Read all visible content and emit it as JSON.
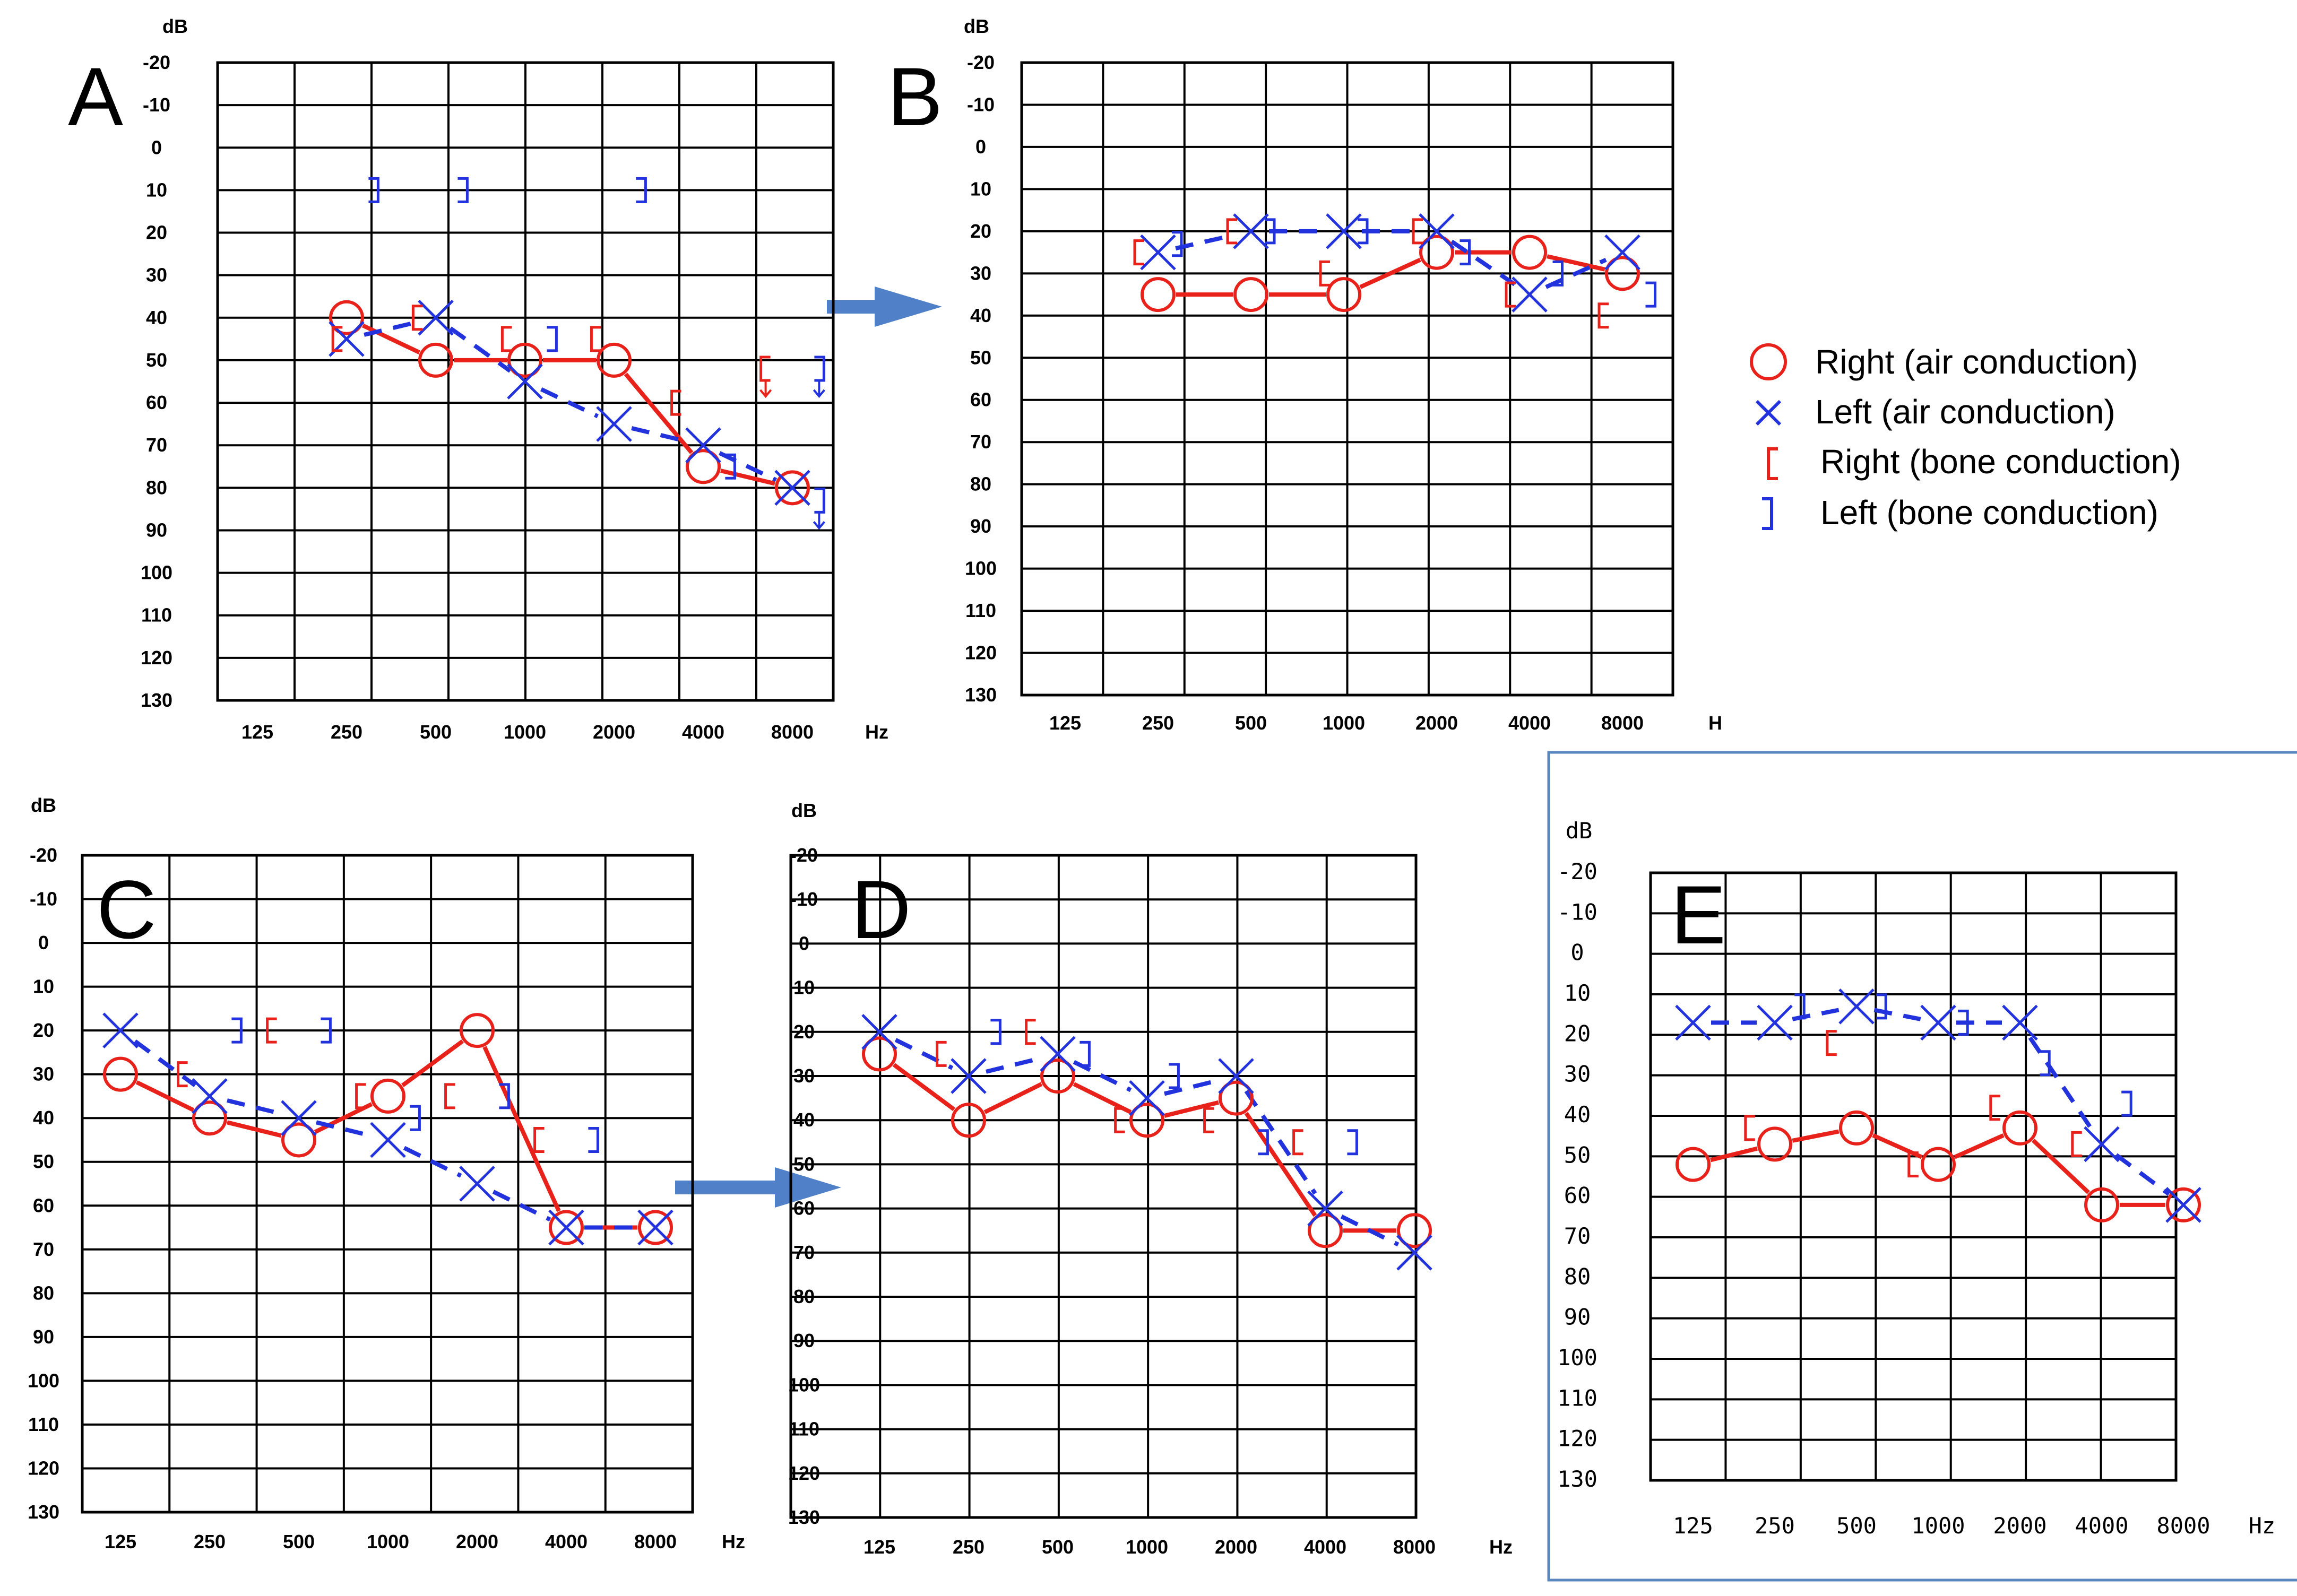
{
  "legend": {
    "right_air": "Right (air conduction)",
    "left_air": "Left (air conduction)",
    "right_bone": "Right (bone conduction)",
    "left_bone": "Left (bone conduction)",
    "right_color": "#e8221b",
    "left_color": "#2233dd"
  },
  "chart_data": [
    {
      "type": "line",
      "panel": "A",
      "ylabel": "dB",
      "xlabel": "Hz",
      "ylim": [
        -20,
        130
      ],
      "y_ticks": [
        "-20",
        "-10",
        "0",
        "10",
        "20",
        "30",
        "40",
        "50",
        "60",
        "70",
        "80",
        "90",
        "100",
        "110",
        "120",
        "130"
      ],
      "categories": [
        "125",
        "250",
        "500",
        "1000",
        "2000",
        "4000",
        "8000"
      ],
      "right_air": [
        [
          1,
          40
        ],
        [
          2,
          50
        ],
        [
          3,
          50
        ],
        [
          4,
          50
        ],
        [
          5,
          75
        ],
        [
          6,
          80
        ]
      ],
      "left_air": [
        [
          1,
          45
        ],
        [
          2,
          40
        ],
        [
          3,
          55
        ],
        [
          4,
          65
        ],
        [
          5,
          70
        ],
        [
          6,
          80
        ]
      ],
      "right_bone": [
        [
          0.9,
          45
        ],
        [
          1.8,
          40
        ],
        [
          2.8,
          45
        ],
        [
          3.8,
          45
        ],
        [
          4.7,
          60
        ],
        [
          5.7,
          52,
          "scale-out"
        ]
      ],
      "left_bone": [
        [
          1.3,
          10
        ],
        [
          2.3,
          10
        ],
        [
          3.3,
          45
        ],
        [
          4.3,
          10
        ],
        [
          5.3,
          75
        ],
        [
          6.3,
          52,
          "scale-out"
        ],
        [
          6.3,
          83,
          "scale-out"
        ]
      ]
    },
    {
      "type": "line",
      "panel": "B",
      "ylabel": "dB",
      "xlabel": "H",
      "ylim": [
        -20,
        130
      ],
      "y_ticks": [
        "-20",
        "-10",
        "0",
        "10",
        "20",
        "30",
        "40",
        "50",
        "60",
        "70",
        "80",
        "90",
        "100",
        "110",
        "120",
        "130"
      ],
      "categories": [
        "125",
        "250",
        "500",
        "1000",
        "2000",
        "4000",
        "8000"
      ],
      "right_air": [
        [
          1,
          35
        ],
        [
          2,
          35
        ],
        [
          3,
          35
        ],
        [
          4,
          25
        ],
        [
          5,
          25
        ],
        [
          6,
          30
        ]
      ],
      "left_air": [
        [
          1,
          25
        ],
        [
          2,
          20
        ],
        [
          3,
          20
        ],
        [
          4,
          20
        ],
        [
          5,
          35
        ],
        [
          6,
          25
        ]
      ],
      "right_bone": [
        [
          0.8,
          25
        ],
        [
          1.8,
          20
        ],
        [
          2.8,
          30
        ],
        [
          3.8,
          20
        ],
        [
          4.8,
          35
        ],
        [
          5.8,
          40
        ]
      ],
      "left_bone": [
        [
          1.2,
          23
        ],
        [
          2.2,
          20
        ],
        [
          3.2,
          20
        ],
        [
          4.3,
          25
        ],
        [
          5.3,
          30
        ],
        [
          6.3,
          35
        ]
      ]
    },
    {
      "type": "line",
      "panel": "C",
      "ylabel": "dB",
      "xlabel": "Hz",
      "ylim": [
        -20,
        130
      ],
      "y_ticks": [
        "-20",
        "-10",
        "0",
        "10",
        "20",
        "30",
        "40",
        "50",
        "60",
        "70",
        "80",
        "90",
        "100",
        "110",
        "120",
        "130"
      ],
      "categories": [
        "125",
        "250",
        "500",
        "1000",
        "2000",
        "4000",
        "8000"
      ],
      "right_air": [
        [
          0,
          30
        ],
        [
          1,
          40
        ],
        [
          2,
          45
        ],
        [
          3,
          35
        ],
        [
          4,
          20
        ],
        [
          5,
          65
        ],
        [
          6,
          65
        ]
      ],
      "left_air": [
        [
          0,
          20
        ],
        [
          1,
          35
        ],
        [
          2,
          40
        ],
        [
          3,
          45
        ],
        [
          4,
          55
        ],
        [
          5,
          65
        ],
        [
          6,
          65
        ]
      ],
      "right_bone": [
        [
          0.7,
          30
        ],
        [
          1.7,
          20
        ],
        [
          2.7,
          35
        ],
        [
          3.7,
          35
        ],
        [
          4.7,
          45
        ]
      ],
      "left_bone": [
        [
          1.3,
          20
        ],
        [
          2.3,
          20
        ],
        [
          3.3,
          40
        ],
        [
          4.3,
          35
        ],
        [
          5.3,
          45
        ]
      ]
    },
    {
      "type": "line",
      "panel": "D",
      "ylabel": "dB",
      "xlabel": "Hz",
      "ylim": [
        -20,
        130
      ],
      "y_ticks": [
        "-20",
        "-10",
        "0",
        "10",
        "20",
        "30",
        "40",
        "50",
        "60",
        "70",
        "80",
        "90",
        "100",
        "110",
        "120",
        "130"
      ],
      "categories": [
        "125",
        "250",
        "500",
        "1000",
        "2000",
        "4000",
        "8000"
      ],
      "right_air": [
        [
          0,
          25
        ],
        [
          1,
          40
        ],
        [
          2,
          30
        ],
        [
          3,
          40
        ],
        [
          4,
          35
        ],
        [
          5,
          65
        ],
        [
          6,
          65
        ]
      ],
      "left_air": [
        [
          0,
          20
        ],
        [
          1,
          30
        ],
        [
          2,
          25
        ],
        [
          3,
          35
        ],
        [
          4,
          30
        ],
        [
          5,
          60
        ],
        [
          6,
          70
        ]
      ],
      "right_bone": [
        [
          0.7,
          25
        ],
        [
          1.7,
          20
        ],
        [
          2.7,
          40
        ],
        [
          3.7,
          40
        ],
        [
          4.7,
          45
        ]
      ],
      "left_bone": [
        [
          1.3,
          20
        ],
        [
          2.3,
          25
        ],
        [
          3.3,
          30
        ],
        [
          4.3,
          45
        ],
        [
          5.3,
          45
        ]
      ]
    },
    {
      "type": "line",
      "panel": "E",
      "ylabel": "dB",
      "xlabel": "Hz",
      "ylim": [
        -20,
        130
      ],
      "y_ticks": [
        "-20",
        "-10",
        "0",
        "10",
        "20",
        "30",
        "40",
        "50",
        "60",
        "70",
        "80",
        "90",
        "100",
        "110",
        "120",
        "130"
      ],
      "categories": [
        "125",
        "250",
        "500",
        "1000",
        "2000",
        "4000",
        "8000"
      ],
      "right_air": [
        [
          0,
          52
        ],
        [
          1,
          47
        ],
        [
          2,
          43
        ],
        [
          3,
          52
        ],
        [
          4,
          43
        ],
        [
          5,
          62
        ],
        [
          6,
          62
        ]
      ],
      "left_air": [
        [
          0,
          17
        ],
        [
          1,
          17
        ],
        [
          2,
          13
        ],
        [
          3,
          17
        ],
        [
          4,
          17
        ],
        [
          5,
          47
        ],
        [
          6,
          62
        ]
      ],
      "right_bone": [
        [
          1.7,
          22
        ],
        [
          0.7,
          43
        ],
        [
          2.7,
          52
        ],
        [
          3.7,
          38
        ],
        [
          4.7,
          47
        ]
      ],
      "left_bone": [
        [
          1.3,
          13
        ],
        [
          2.3,
          13
        ],
        [
          3.3,
          17
        ],
        [
          4.3,
          27
        ],
        [
          5.3,
          37
        ]
      ]
    }
  ]
}
